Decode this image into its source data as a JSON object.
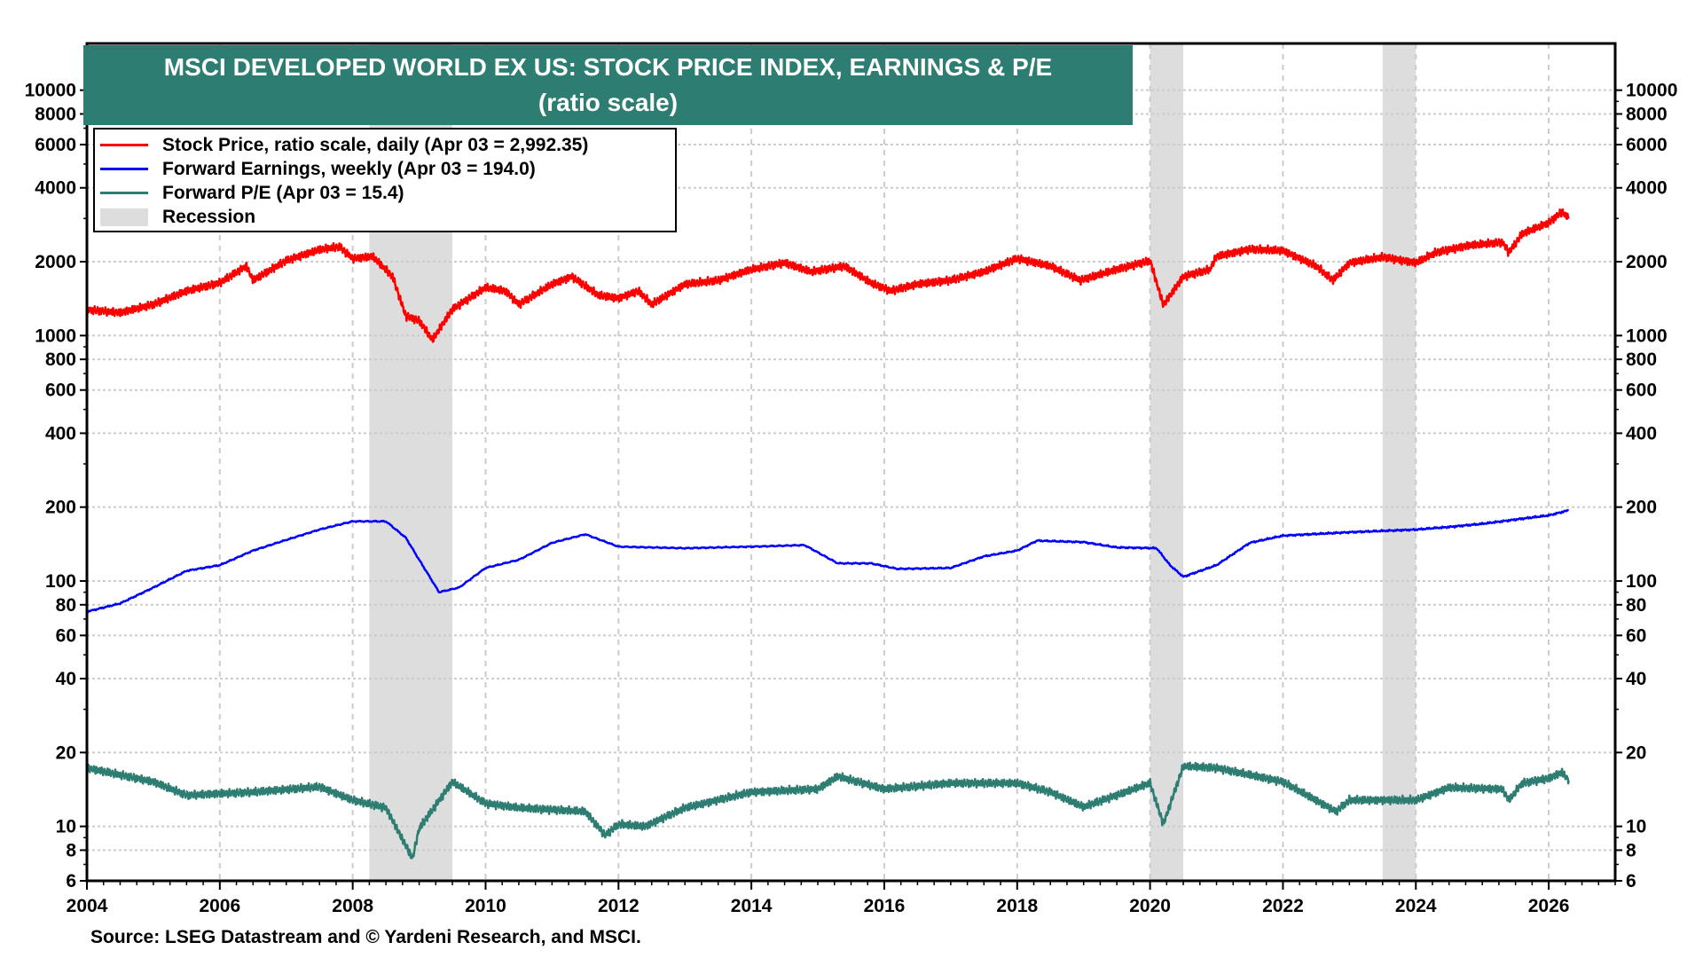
{
  "chart_data": {
    "type": "line",
    "title": "MSCI DEVELOPED WORLD EX US: STOCK PRICE INDEX, EARNINGS & P/E",
    "subtitle": "(ratio scale)",
    "source": "Source: LSEG Datastream and © Yardeni Research, and MSCI.",
    "y_scale": "log",
    "ylim": [
      6,
      15500
    ],
    "xlim": [
      2004,
      2027
    ],
    "y_ticks": [
      6,
      8,
      10,
      20,
      40,
      60,
      80,
      100,
      200,
      400,
      600,
      800,
      1000,
      2000,
      4000,
      6000,
      8000,
      10000
    ],
    "x_ticks": [
      2004,
      2006,
      2008,
      2010,
      2012,
      2014,
      2016,
      2018,
      2020,
      2022,
      2024,
      2026
    ],
    "grid": true,
    "legend_placement": "top-left",
    "recessions": [
      [
        2008.25,
        2009.5
      ],
      [
        2020.0,
        2020.5
      ],
      [
        2023.5,
        2024.0
      ]
    ],
    "legend": [
      {
        "label": "Stock Price, ratio scale, daily (Apr 03 = 2,992.35)",
        "color": "#ff0000"
      },
      {
        "label": "Forward Earnings, weekly (Apr 03 = 194.0)",
        "color": "#0000ff"
      },
      {
        "label": "Forward P/E (Apr 03 = 15.4)",
        "color": "#2e7d72"
      },
      {
        "label": "Recession",
        "color": "#dddddd"
      }
    ],
    "series": [
      {
        "name": "Stock Price",
        "color": "#ff0000",
        "x": [
          2004.0,
          2004.5,
          2005.0,
          2005.5,
          2006.0,
          2006.4,
          2006.5,
          2007.0,
          2007.5,
          2007.8,
          2008.0,
          2008.3,
          2008.6,
          2008.8,
          2009.0,
          2009.2,
          2009.5,
          2010.0,
          2010.3,
          2010.5,
          2011.0,
          2011.3,
          2011.7,
          2012.0,
          2012.3,
          2012.5,
          2013.0,
          2013.5,
          2014.0,
          2014.5,
          2014.9,
          2015.4,
          2015.8,
          2016.1,
          2016.5,
          2017.0,
          2017.5,
          2018.0,
          2018.5,
          2018.95,
          2019.5,
          2020.0,
          2020.2,
          2020.5,
          2020.9,
          2021.0,
          2021.5,
          2022.0,
          2022.5,
          2022.75,
          2023.0,
          2023.5,
          2024.0,
          2024.3,
          2024.8,
          2025.3,
          2025.4,
          2025.6,
          2026.0,
          2026.2,
          2026.3
        ],
        "y": [
          1276,
          1240,
          1340,
          1520,
          1640,
          1920,
          1680,
          2020,
          2240,
          2300,
          2060,
          2100,
          1740,
          1200,
          1150,
          960,
          1280,
          1570,
          1520,
          1340,
          1620,
          1740,
          1460,
          1420,
          1520,
          1340,
          1620,
          1680,
          1860,
          1980,
          1820,
          1920,
          1640,
          1520,
          1620,
          1680,
          1820,
          2060,
          1920,
          1680,
          1860,
          2020,
          1330,
          1740,
          1860,
          2100,
          2250,
          2220,
          1920,
          1680,
          1980,
          2090,
          1980,
          2180,
          2330,
          2400,
          2180,
          2600,
          2880,
          3200,
          2992
        ]
      },
      {
        "name": "Forward Earnings",
        "color": "#0000ff",
        "x": [
          2004.0,
          2004.5,
          2005.0,
          2005.5,
          2006.0,
          2006.5,
          2007.0,
          2007.5,
          2008.0,
          2008.5,
          2008.8,
          2009.0,
          2009.3,
          2009.6,
          2010.0,
          2010.5,
          2011.0,
          2011.5,
          2012.0,
          2013.0,
          2014.0,
          2014.8,
          2015.3,
          2015.8,
          2016.2,
          2017.0,
          2017.5,
          2018.0,
          2018.3,
          2019.0,
          2019.5,
          2020.1,
          2020.3,
          2020.5,
          2021.0,
          2021.5,
          2022.0,
          2023.0,
          2024.0,
          2024.5,
          2025.0,
          2025.5,
          2026.0,
          2026.3
        ],
        "y": [
          75,
          81,
          94,
          110,
          116,
          133,
          147,
          162,
          175,
          175,
          150,
          122,
          90,
          94,
          113,
          122,
          143,
          155,
          138,
          136,
          138,
          140,
          118,
          118,
          112,
          113,
          126,
          133,
          146,
          144,
          137,
          136,
          116,
          104,
          116,
          143,
          153,
          158,
          162,
          166,
          171,
          178,
          185,
          194
        ]
      },
      {
        "name": "Forward P/E",
        "color": "#2e7d72",
        "x": [
          2004.0,
          2005.0,
          2005.5,
          2006.5,
          2007.5,
          2008.0,
          2008.5,
          2008.9,
          2009.0,
          2009.5,
          2010.0,
          2010.5,
          2011.5,
          2011.8,
          2012.0,
          2012.4,
          2013.0,
          2014.0,
          2015.0,
          2015.3,
          2016.0,
          2017.0,
          2018.0,
          2018.5,
          2019.0,
          2019.5,
          2020.0,
          2020.2,
          2020.5,
          2021.0,
          2022.0,
          2022.8,
          2023.0,
          2024.0,
          2024.5,
          2025.3,
          2025.4,
          2025.6,
          2026.0,
          2026.2,
          2026.3
        ],
        "y": [
          17.3,
          15.2,
          13.4,
          13.8,
          14.5,
          12.8,
          11.9,
          7.4,
          9.8,
          15.2,
          12.4,
          11.9,
          11.5,
          9.2,
          10.2,
          10.0,
          11.9,
          13.8,
          14.2,
          16.0,
          14.2,
          15.0,
          15.0,
          13.8,
          12.0,
          13.4,
          15.0,
          10.2,
          17.6,
          17.3,
          15.2,
          11.5,
          12.8,
          12.8,
          14.4,
          14.2,
          12.8,
          15.0,
          15.7,
          16.6,
          15.4
        ]
      }
    ]
  }
}
